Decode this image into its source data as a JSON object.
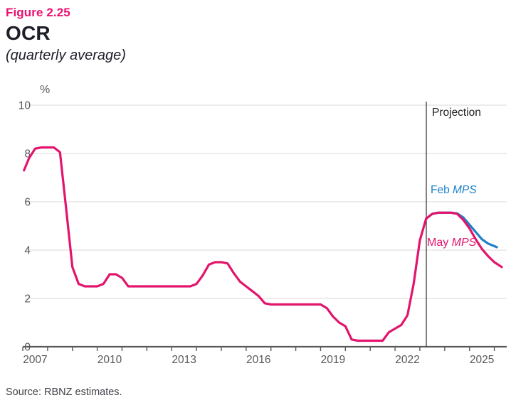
{
  "header": {
    "figure_label": "Figure 2.25",
    "title": "OCR",
    "subtitle": "(quarterly average)"
  },
  "footer": {
    "source": "Source: RBNZ estimates."
  },
  "colors": {
    "figure_label": "#ed0f6e",
    "title_text": "#1e1e28",
    "pink_line": "#e2146b",
    "blue_line": "#1d81c4",
    "grid": "#d9d9d9",
    "axis": "#58595b",
    "tick_label": "#58595b",
    "projection_line": "#404041",
    "projection_label": "#231f20",
    "source_text": "#414149"
  },
  "chart_data": {
    "type": "line",
    "title": "OCR",
    "subtitle": "(quarterly average)",
    "unit_label": "%",
    "ylim": [
      0,
      10
    ],
    "yticks": [
      0,
      2,
      4,
      6,
      8,
      10
    ],
    "xlim": [
      2007,
      2026.5
    ],
    "tick_years_start": 2007,
    "tick_years_end": 2026,
    "x_year_labels": [
      2007,
      2010,
      2013,
      2016,
      2019,
      2022,
      2025
    ],
    "grid": "horizontal-only",
    "projection_start_year": 2023.26,
    "annotations": [
      {
        "id": "projection-label",
        "plain": "Projection",
        "italic": "",
        "x": 607,
        "y": 163,
        "size": 15.5,
        "color_key": "projection_label"
      },
      {
        "id": "feb-mps-label",
        "plain": "Feb ",
        "italic": "MPS",
        "x": 605,
        "y": 272,
        "size": 15.5,
        "color_key": "blue_line"
      },
      {
        "id": "may-mps-label",
        "plain": "May ",
        "italic": "MPS",
        "x": 600,
        "y": 346,
        "size": 16,
        "color_key": "pink_line"
      }
    ],
    "series": [
      {
        "name": "Feb MPS",
        "color_key": "blue_line",
        "points": [
          [
            2023.25,
            5.3
          ],
          [
            2023.5,
            5.5
          ],
          [
            2023.75,
            5.55
          ],
          [
            2024.0,
            5.55
          ],
          [
            2024.25,
            5.55
          ],
          [
            2024.5,
            5.52
          ],
          [
            2024.75,
            5.35
          ],
          [
            2025.0,
            5.05
          ],
          [
            2025.25,
            4.75
          ],
          [
            2025.5,
            4.45
          ],
          [
            2025.75,
            4.27
          ],
          [
            2026.1,
            4.12
          ]
        ]
      },
      {
        "name": "May MPS",
        "color_key": "pink_line",
        "points": [
          [
            2007.05,
            7.3
          ],
          [
            2007.25,
            7.8
          ],
          [
            2007.5,
            8.2
          ],
          [
            2007.75,
            8.25
          ],
          [
            2008.0,
            8.25
          ],
          [
            2008.25,
            8.25
          ],
          [
            2008.5,
            8.05
          ],
          [
            2008.75,
            5.7
          ],
          [
            2009.0,
            3.3
          ],
          [
            2009.25,
            2.6
          ],
          [
            2009.5,
            2.5
          ],
          [
            2009.75,
            2.5
          ],
          [
            2010.0,
            2.5
          ],
          [
            2010.25,
            2.6
          ],
          [
            2010.5,
            3.0
          ],
          [
            2010.75,
            3.0
          ],
          [
            2011.0,
            2.85
          ],
          [
            2011.25,
            2.5
          ],
          [
            2011.5,
            2.5
          ],
          [
            2011.75,
            2.5
          ],
          [
            2012.0,
            2.5
          ],
          [
            2012.25,
            2.5
          ],
          [
            2012.5,
            2.5
          ],
          [
            2012.75,
            2.5
          ],
          [
            2013.0,
            2.5
          ],
          [
            2013.25,
            2.5
          ],
          [
            2013.5,
            2.5
          ],
          [
            2013.75,
            2.5
          ],
          [
            2014.0,
            2.6
          ],
          [
            2014.25,
            2.95
          ],
          [
            2014.5,
            3.4
          ],
          [
            2014.75,
            3.5
          ],
          [
            2015.0,
            3.5
          ],
          [
            2015.25,
            3.45
          ],
          [
            2015.5,
            3.05
          ],
          [
            2015.75,
            2.7
          ],
          [
            2016.0,
            2.5
          ],
          [
            2016.25,
            2.3
          ],
          [
            2016.5,
            2.1
          ],
          [
            2016.75,
            1.8
          ],
          [
            2017.0,
            1.75
          ],
          [
            2017.25,
            1.75
          ],
          [
            2017.5,
            1.75
          ],
          [
            2017.75,
            1.75
          ],
          [
            2018.0,
            1.75
          ],
          [
            2018.25,
            1.75
          ],
          [
            2018.5,
            1.75
          ],
          [
            2018.75,
            1.75
          ],
          [
            2019.0,
            1.75
          ],
          [
            2019.25,
            1.6
          ],
          [
            2019.5,
            1.25
          ],
          [
            2019.75,
            1.0
          ],
          [
            2020.0,
            0.85
          ],
          [
            2020.25,
            0.3
          ],
          [
            2020.5,
            0.25
          ],
          [
            2020.75,
            0.25
          ],
          [
            2021.0,
            0.25
          ],
          [
            2021.25,
            0.25
          ],
          [
            2021.5,
            0.25
          ],
          [
            2021.75,
            0.6
          ],
          [
            2022.0,
            0.75
          ],
          [
            2022.25,
            0.9
          ],
          [
            2022.5,
            1.3
          ],
          [
            2022.75,
            2.6
          ],
          [
            2023.0,
            4.4
          ],
          [
            2023.25,
            5.3
          ],
          [
            2023.5,
            5.5
          ],
          [
            2023.75,
            5.55
          ],
          [
            2024.0,
            5.55
          ],
          [
            2024.25,
            5.55
          ],
          [
            2024.5,
            5.5
          ],
          [
            2024.75,
            5.25
          ],
          [
            2025.0,
            4.9
          ],
          [
            2025.25,
            4.45
          ],
          [
            2025.5,
            4.05
          ],
          [
            2025.75,
            3.75
          ],
          [
            2026.0,
            3.5
          ],
          [
            2026.3,
            3.3
          ]
        ]
      }
    ]
  }
}
